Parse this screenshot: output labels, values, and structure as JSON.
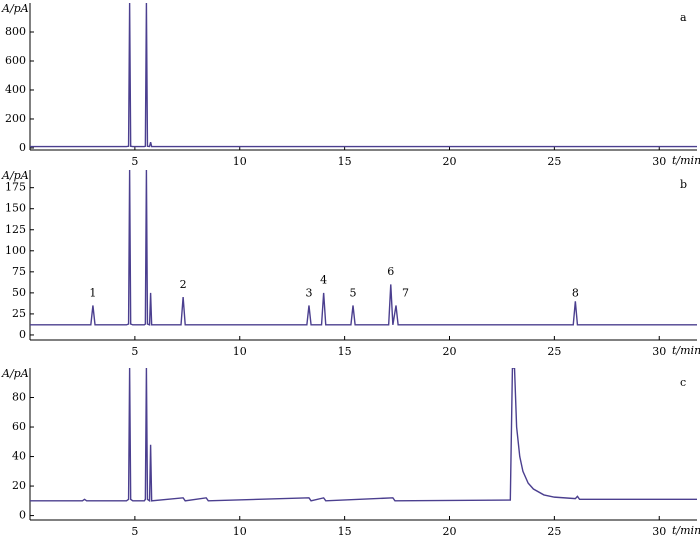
{
  "chart_data": [
    {
      "type": "line",
      "panel_label": "a",
      "y_label": "A/pA",
      "x_label": "t/min",
      "x": [
        0,
        4.6,
        4.7,
        4.75,
        4.8,
        4.9,
        5.45,
        5.5,
        5.55,
        5.6,
        5.7,
        5.75,
        5.8,
        31.8
      ],
      "series": [
        {
          "color": "#4b3f8f",
          "values": [
            10,
            10,
            12,
            1000,
            12,
            10,
            10,
            12,
            1000,
            12,
            10,
            40,
            10,
            10
          ]
        }
      ],
      "xlim": [
        0,
        31.8
      ],
      "ylim": [
        -14,
        1000
      ],
      "xticks": [
        5,
        10,
        15,
        20,
        25,
        30
      ],
      "yticks": [
        0,
        200,
        400,
        600,
        800
      ]
    },
    {
      "type": "line",
      "panel_label": "b",
      "y_label": "A/pA",
      "x_label": "t/min",
      "x": [
        0,
        2.9,
        3.0,
        3.1,
        4.6,
        4.7,
        4.75,
        4.8,
        4.9,
        5.45,
        5.5,
        5.55,
        5.6,
        5.7,
        5.75,
        5.8,
        7.2,
        7.3,
        7.4,
        13.2,
        13.3,
        13.4,
        13.9,
        14.0,
        14.1,
        15.3,
        15.4,
        15.5,
        17.1,
        17.2,
        17.3,
        17.45,
        17.55,
        25.9,
        26.0,
        26.1,
        31.8
      ],
      "series": [
        {
          "color": "#4b3f8f",
          "values": [
            12,
            12,
            35,
            12,
            12,
            13,
            196,
            13,
            12,
            12,
            13,
            196,
            13,
            12,
            50,
            12,
            12,
            45,
            12,
            12,
            35,
            12,
            12,
            50,
            12,
            12,
            35,
            12,
            12,
            60,
            12,
            35,
            12,
            12,
            40,
            12,
            12
          ]
        }
      ],
      "annotations": [
        {
          "text": "1",
          "x": 3.0,
          "y": 40
        },
        {
          "text": "2",
          "x": 7.3,
          "y": 50
        },
        {
          "text": "3",
          "x": 13.3,
          "y": 40
        },
        {
          "text": "4",
          "x": 14.0,
          "y": 55
        },
        {
          "text": "5",
          "x": 15.4,
          "y": 40
        },
        {
          "text": "6",
          "x": 17.2,
          "y": 65
        },
        {
          "text": "7",
          "x": 17.9,
          "y": 40
        },
        {
          "text": "8",
          "x": 26.0,
          "y": 40
        }
      ],
      "xlim": [
        0,
        31.8
      ],
      "ylim": [
        -6,
        196
      ],
      "xticks": [
        5,
        10,
        15,
        20,
        25,
        30
      ],
      "yticks": [
        0,
        25,
        50,
        75,
        100,
        125,
        150,
        175
      ]
    },
    {
      "type": "line",
      "panel_label": "c",
      "y_label": "A/pA",
      "x_label": "t/min",
      "x": [
        0,
        2.5,
        2.6,
        2.7,
        4.6,
        4.7,
        4.75,
        4.8,
        4.9,
        5.45,
        5.5,
        5.55,
        5.6,
        5.7,
        5.75,
        5.8,
        7.3,
        7.4,
        8.4,
        8.5,
        13.3,
        13.4,
        14.0,
        14.1,
        17.3,
        17.4,
        22.9,
        23.0,
        23.1,
        23.2,
        23.35,
        23.5,
        23.75,
        24.0,
        24.5,
        25.0,
        26.0,
        26.1,
        26.2,
        27,
        31.8
      ],
      "series": [
        {
          "color": "#4b3f8f",
          "values": [
            10,
            10,
            11,
            10,
            10,
            11,
            100,
            11,
            10,
            10,
            11,
            100,
            11,
            10,
            48,
            10,
            12,
            10,
            12,
            10,
            12,
            10,
            12,
            10,
            12,
            10,
            10.5,
            100,
            100,
            60,
            40,
            30,
            22,
            18,
            14,
            12.5,
            11.5,
            13,
            11,
            11,
            11
          ]
        }
      ],
      "xlim": [
        0,
        31.8
      ],
      "ylim": [
        -3,
        100
      ],
      "xticks": [
        5,
        10,
        15,
        20,
        25,
        30
      ],
      "yticks": [
        0,
        20,
        40,
        60,
        80
      ]
    }
  ]
}
